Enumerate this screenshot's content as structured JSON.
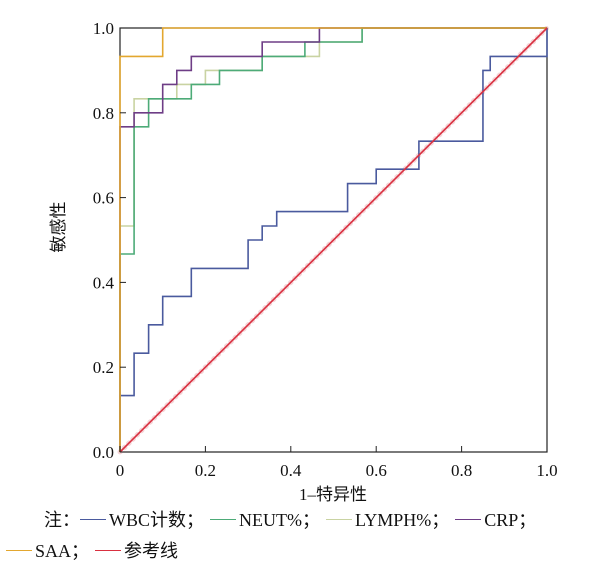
{
  "chart_data": {
    "type": "line",
    "title": "",
    "xlabel": "1–特异性",
    "ylabel": "敏感性",
    "xlim": [
      0,
      1
    ],
    "ylim": [
      0,
      1
    ],
    "x_ticks": [
      "0",
      "0.2",
      "0.4",
      "0.6",
      "0.8",
      "1.0"
    ],
    "y_ticks": [
      "0.0",
      "0.2",
      "0.4",
      "0.6",
      "0.8",
      "1.0"
    ],
    "grid": false,
    "series": [
      {
        "name": "WBC计数",
        "color": "#4a5a9e",
        "x": [
          0,
          0,
          0.033,
          0.033,
          0.067,
          0.067,
          0.1,
          0.1,
          0.133,
          0.133,
          0.167,
          0.167,
          0.3,
          0.3,
          0.333,
          0.333,
          0.367,
          0.367,
          0.533,
          0.533,
          0.6,
          0.6,
          0.7,
          0.7,
          0.733,
          0.733,
          0.85,
          0.85,
          0.867,
          0.867,
          1.0,
          1.0
        ],
        "y": [
          0,
          0.133,
          0.133,
          0.233,
          0.233,
          0.3,
          0.3,
          0.367,
          0.367,
          0.367,
          0.367,
          0.433,
          0.433,
          0.5,
          0.5,
          0.533,
          0.533,
          0.567,
          0.567,
          0.633,
          0.633,
          0.667,
          0.667,
          0.733,
          0.733,
          0.733,
          0.733,
          0.9,
          0.9,
          0.933,
          0.933,
          1.0
        ]
      },
      {
        "name": "NEUT%",
        "color": "#4dab78",
        "x": [
          0,
          0,
          0.033,
          0.033,
          0.067,
          0.067,
          0.133,
          0.133,
          0.167,
          0.167,
          0.2,
          0.2,
          0.233,
          0.233,
          0.333,
          0.333,
          0.4,
          0.4,
          0.433,
          0.433,
          0.5,
          0.5,
          0.533,
          0.533,
          0.567,
          0.567,
          1.0
        ],
        "y": [
          0,
          0.467,
          0.467,
          0.767,
          0.767,
          0.833,
          0.833,
          0.833,
          0.833,
          0.867,
          0.867,
          0.867,
          0.867,
          0.9,
          0.9,
          0.933,
          0.933,
          0.933,
          0.933,
          0.967,
          0.967,
          0.967,
          0.967,
          0.967,
          0.967,
          1.0,
          1.0
        ]
      },
      {
        "name": "LYMPH%",
        "color": "#c9d3a2",
        "x": [
          0,
          0,
          0.033,
          0.033,
          0.1,
          0.1,
          0.133,
          0.133,
          0.2,
          0.2,
          0.267,
          0.267,
          0.333,
          0.333,
          0.4,
          0.4,
          0.467,
          0.467,
          0.533,
          0.533,
          0.567,
          0.567,
          1.0
        ],
        "y": [
          0,
          0.533,
          0.533,
          0.833,
          0.833,
          0.833,
          0.833,
          0.867,
          0.867,
          0.9,
          0.9,
          0.9,
          0.9,
          0.933,
          0.933,
          0.933,
          0.933,
          0.967,
          0.967,
          0.967,
          0.967,
          1.0,
          1.0
        ]
      },
      {
        "name": "CRP",
        "color": "#6e3d86",
        "x": [
          0,
          0,
          0.033,
          0.033,
          0.067,
          0.067,
          0.1,
          0.1,
          0.133,
          0.133,
          0.167,
          0.167,
          0.233,
          0.233,
          0.333,
          0.333,
          0.467,
          0.467,
          1.0
        ],
        "y": [
          0,
          0.767,
          0.767,
          0.8,
          0.8,
          0.8,
          0.8,
          0.867,
          0.867,
          0.9,
          0.9,
          0.933,
          0.933,
          0.933,
          0.933,
          0.967,
          0.967,
          1.0,
          1.0
        ]
      },
      {
        "name": "SAA",
        "color": "#e3a72f",
        "x": [
          0,
          0,
          0.1,
          0.1,
          1.0
        ],
        "y": [
          0,
          0.933,
          0.933,
          1.0,
          1.0
        ]
      },
      {
        "name": "参考线",
        "color": "#d93040",
        "x": [
          0,
          1
        ],
        "y": [
          0,
          1
        ]
      }
    ]
  },
  "legend": {
    "prefix": "注：",
    "separator": "；",
    "items": [
      {
        "label": "WBC计数",
        "color": "#4a5a9e"
      },
      {
        "label": "NEUT%",
        "color": "#4dab78"
      },
      {
        "label": "LYMPH%",
        "color": "#c9d3a2"
      },
      {
        "label": "CRP",
        "color": "#6e3d86"
      },
      {
        "label": "SAA",
        "color": "#e3a72f"
      },
      {
        "label": "参考线",
        "color": "#d93040"
      }
    ]
  }
}
